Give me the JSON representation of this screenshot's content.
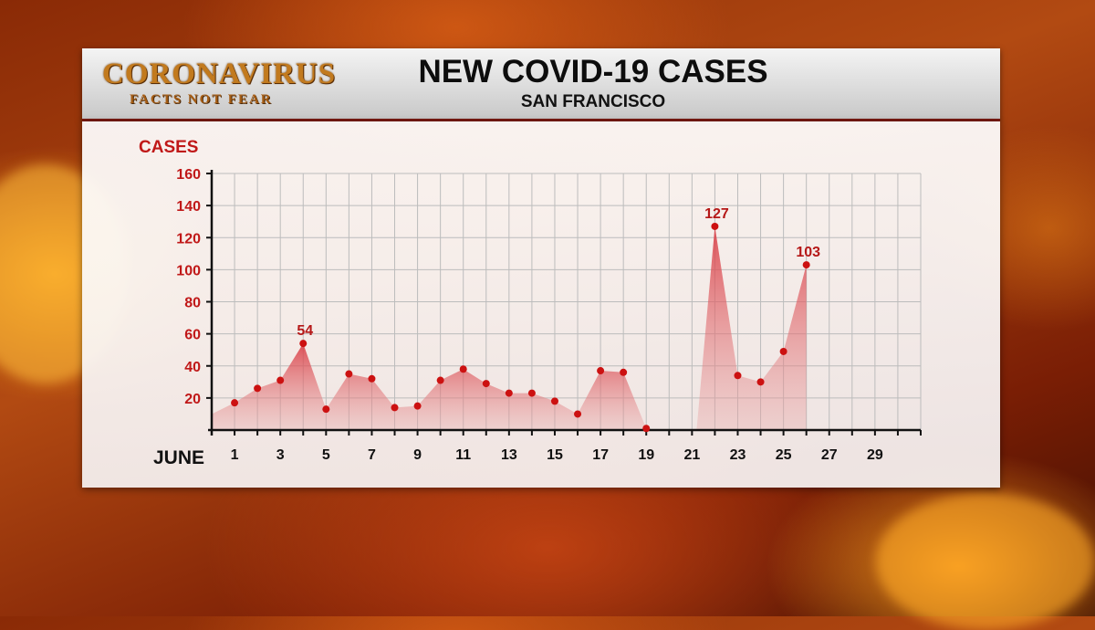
{
  "header": {
    "logo_main": "CORONAVIRUS",
    "logo_sub": "FACTS NOT FEAR"
  },
  "colors": {
    "accent": "#c01818",
    "area_fill": "#e8a6a6",
    "marker": "#cc1111",
    "grid": "#bcbcbc"
  },
  "chart_data": {
    "type": "area",
    "title": "NEW COVID-19 CASES",
    "subtitle": "SAN FRANCISCO",
    "ylabel": "CASES",
    "xlabel": "JUNE",
    "ylim": [
      0,
      160
    ],
    "yticks": [
      20,
      40,
      60,
      80,
      100,
      120,
      140,
      160
    ],
    "xlim": [
      0,
      31
    ],
    "xticks": [
      1,
      3,
      5,
      7,
      9,
      11,
      13,
      15,
      17,
      19,
      21,
      23,
      25,
      27,
      29
    ],
    "grid": true,
    "series": [
      {
        "segments": [
          [
            {
              "x": 0,
              "y": 10
            },
            {
              "x": 1,
              "y": 17
            },
            {
              "x": 2,
              "y": 26
            },
            {
              "x": 3,
              "y": 31
            },
            {
              "x": 4,
              "y": 54
            },
            {
              "x": 5,
              "y": 13
            },
            {
              "x": 6,
              "y": 35
            },
            {
              "x": 7,
              "y": 32
            },
            {
              "x": 8,
              "y": 14
            },
            {
              "x": 9,
              "y": 15
            },
            {
              "x": 10,
              "y": 31
            },
            {
              "x": 11,
              "y": 38
            },
            {
              "x": 12,
              "y": 29
            },
            {
              "x": 13,
              "y": 23
            },
            {
              "x": 14,
              "y": 23
            },
            {
              "x": 15,
              "y": 18
            },
            {
              "x": 16,
              "y": 10
            },
            {
              "x": 17,
              "y": 37
            },
            {
              "x": 18,
              "y": 36
            },
            {
              "x": 19,
              "y": 1
            }
          ],
          [
            {
              "x": 22,
              "y": 127
            },
            {
              "x": 23,
              "y": 34
            },
            {
              "x": 24,
              "y": 30
            },
            {
              "x": 25,
              "y": 49
            },
            {
              "x": 26,
              "y": 103
            }
          ]
        ]
      }
    ],
    "annotations": [
      {
        "x": 4,
        "y": 54,
        "text": "54"
      },
      {
        "x": 22,
        "y": 127,
        "text": "127"
      },
      {
        "x": 26,
        "y": 103,
        "text": "103"
      }
    ]
  }
}
